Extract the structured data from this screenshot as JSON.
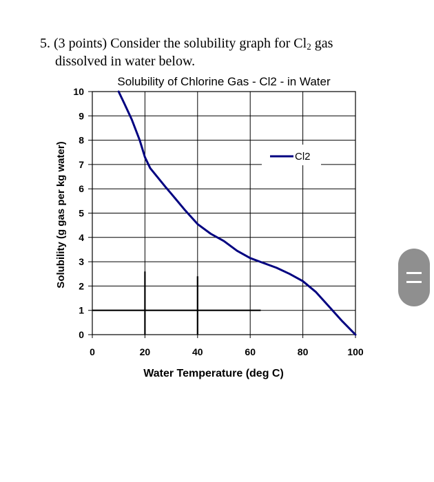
{
  "question": {
    "line1_prefix": "5. (3 points) Consider the solubility graph for Cl",
    "line1_sub": "2",
    "line1_suffix": " gas",
    "line2": "dissolved in water below."
  },
  "chart_data": {
    "type": "line",
    "title": "Solubility of Chlorine Gas - Cl2 - in Water",
    "xlabel": "Water Temperature (deg C)",
    "ylabel": "Solubility (g gas per kg water)",
    "xlim": [
      0,
      100
    ],
    "ylim": [
      0,
      10
    ],
    "xticks": [
      0,
      20,
      40,
      60,
      80,
      100
    ],
    "yticks": [
      0,
      1,
      2,
      3,
      4,
      5,
      6,
      7,
      8,
      9,
      10
    ],
    "grid": true,
    "legend": "top-right",
    "series": [
      {
        "name": "Cl2",
        "color": "#000080",
        "x": [
          10,
          12,
          15,
          18,
          20,
          22,
          25,
          28,
          30,
          35,
          40,
          45,
          50,
          55,
          60,
          65,
          70,
          75,
          80,
          85,
          90,
          95,
          100
        ],
        "y": [
          10.0,
          9.55,
          8.85,
          8.0,
          7.3,
          6.85,
          6.45,
          6.05,
          5.8,
          5.15,
          4.55,
          4.15,
          3.85,
          3.45,
          3.15,
          2.95,
          2.75,
          2.5,
          2.2,
          1.75,
          1.15,
          0.55,
          0.0
        ]
      }
    ],
    "annotation_lines": [
      {
        "x": [
          0,
          64
        ],
        "y": [
          1,
          1
        ]
      },
      {
        "x": [
          20,
          20
        ],
        "y": [
          0,
          2.6
        ]
      },
      {
        "x": [
          40,
          40
        ],
        "y": [
          0,
          2.4
        ]
      }
    ]
  },
  "ui": {
    "scroll_handle_icon": "drag-handle-icon"
  }
}
